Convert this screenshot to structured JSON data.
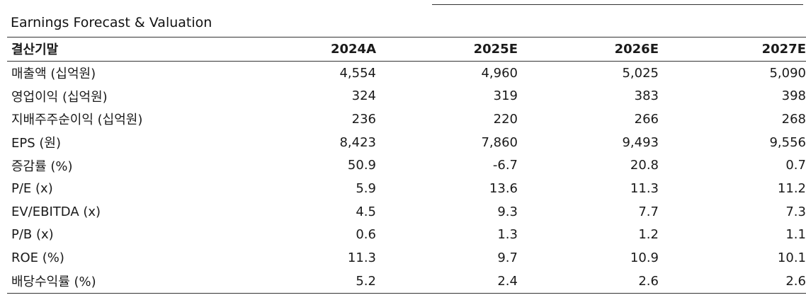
{
  "section_title": "Earnings Forecast & Valuation",
  "columns": [
    "결산기말",
    "2024A",
    "2025E",
    "2026E",
    "2027E"
  ],
  "rows": [
    {
      "label": "매출액 (십억원)",
      "values": [
        "4,554",
        "4,960",
        "5,025",
        "5,090"
      ]
    },
    {
      "label": "영업이익 (십억원)",
      "values": [
        "324",
        "319",
        "383",
        "398"
      ]
    },
    {
      "label": "지배주주순이익 (십억원)",
      "values": [
        "236",
        "220",
        "266",
        "268"
      ]
    },
    {
      "label": "EPS (원)",
      "values": [
        "8,423",
        "7,860",
        "9,493",
        "9,556"
      ]
    },
    {
      "label": "증감률 (%)",
      "values": [
        "50.9",
        "-6.7",
        "20.8",
        "0.7"
      ]
    },
    {
      "label": "P/E (x)",
      "values": [
        "5.9",
        "13.6",
        "11.3",
        "11.2"
      ]
    },
    {
      "label": "EV/EBITDA (x)",
      "values": [
        "4.5",
        "9.3",
        "7.7",
        "7.3"
      ]
    },
    {
      "label": "P/B (x)",
      "values": [
        "0.6",
        "1.3",
        "1.2",
        "1.1"
      ]
    },
    {
      "label": "ROE (%)",
      "values": [
        "11.3",
        "9.7",
        "10.9",
        "10.1"
      ]
    },
    {
      "label": "배당수익률 (%)",
      "values": [
        "5.2",
        "2.4",
        "2.6",
        "2.6"
      ]
    }
  ]
}
